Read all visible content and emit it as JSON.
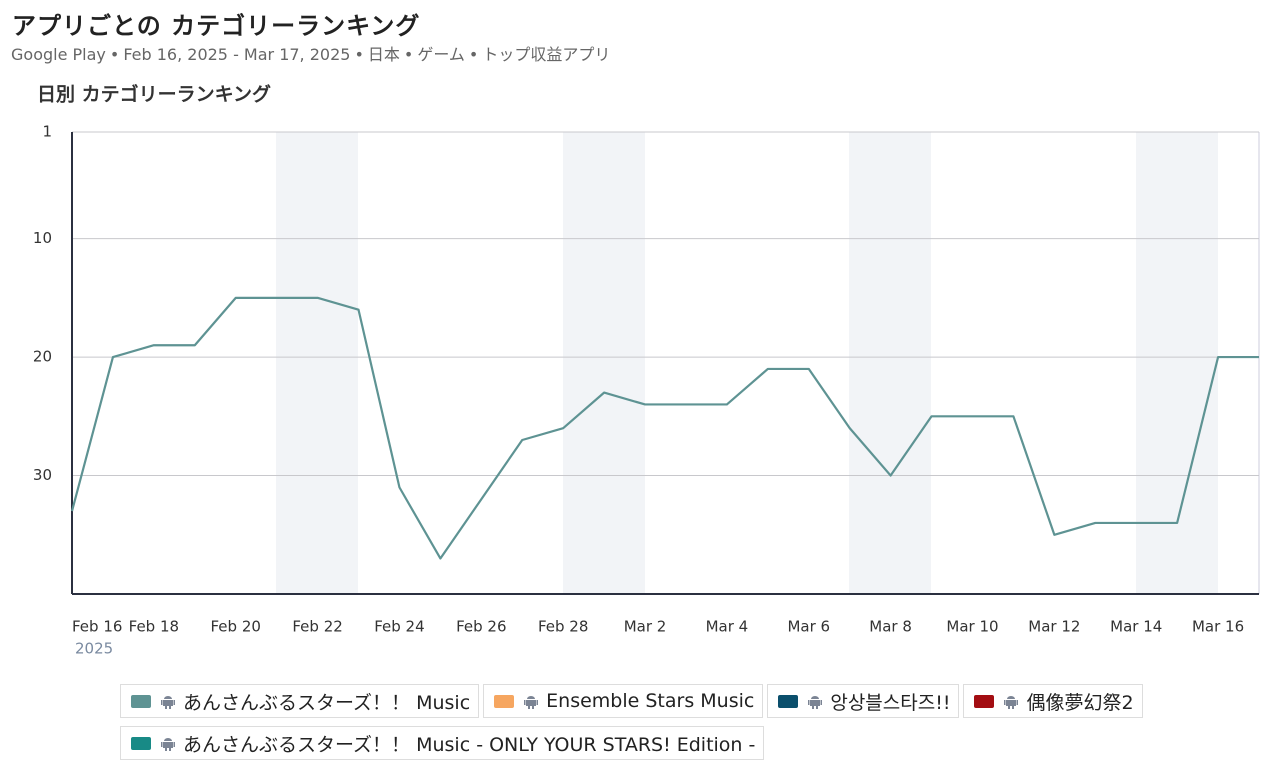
{
  "header": {
    "title": "アプリごとの カテゴリーランキング",
    "subtitle": [
      "Google Play",
      "Feb 16, 2025 - Mar 17, 2025",
      "日本",
      "ゲーム",
      "トップ収益アプリ"
    ]
  },
  "chart_data": {
    "type": "line",
    "title": "日別 カテゴリーランキング",
    "categories": [
      "Feb 16",
      null,
      "Feb 18",
      null,
      "Feb 20",
      null,
      "Feb 22",
      null,
      "Feb 24",
      null,
      "Feb 26",
      null,
      "Feb 28",
      null,
      "Mar 2",
      null,
      "Mar 4",
      null,
      "Mar 6",
      null,
      "Mar 8",
      null,
      "Mar 10",
      null,
      "Mar 12",
      null,
      "Mar 14",
      null,
      "Mar 16",
      null
    ],
    "x_year_label": "2025",
    "ylim": [
      1,
      40
    ],
    "y_inverted": true,
    "yticks": [
      1,
      10,
      20,
      30
    ],
    "grid": true,
    "series": [
      {
        "name": "あんさんぶるスターズ！！ Music",
        "color": "#5e9393",
        "values": [
          33,
          20,
          19,
          19,
          15,
          15,
          15,
          16,
          31,
          37,
          32,
          27,
          26,
          23,
          24,
          24,
          24,
          21,
          21,
          26,
          30,
          25,
          25,
          25,
          35,
          34,
          34,
          34,
          20,
          20
        ]
      },
      {
        "name": "Ensemble Stars Music",
        "color": "#f6a660",
        "values": [
          null,
          null,
          null,
          null,
          null,
          null,
          null,
          null,
          null,
          null,
          null,
          null,
          null,
          null,
          null,
          null,
          null,
          null,
          null,
          null,
          null,
          null,
          null,
          null,
          null,
          null,
          null,
          null,
          null,
          null
        ]
      },
      {
        "name": "앙상블스타즈!!",
        "color": "#0b4f6c",
        "values": [
          null,
          null,
          null,
          null,
          null,
          null,
          null,
          null,
          null,
          null,
          null,
          null,
          null,
          null,
          null,
          null,
          null,
          null,
          null,
          null,
          null,
          null,
          null,
          null,
          null,
          null,
          null,
          null,
          null,
          null
        ]
      },
      {
        "name": "偶像夢幻祭2",
        "color": "#a30d12",
        "values": [
          null,
          null,
          null,
          null,
          null,
          null,
          null,
          null,
          null,
          null,
          null,
          null,
          null,
          null,
          null,
          null,
          null,
          null,
          null,
          null,
          null,
          null,
          null,
          null,
          null,
          null,
          null,
          null,
          null,
          null
        ]
      },
      {
        "name": "あんさんぶるスターズ！！ Music - ONLY YOUR STARS! Edition -",
        "color": "#188a86",
        "values": [
          null,
          null,
          null,
          null,
          null,
          null,
          null,
          null,
          null,
          null,
          null,
          null,
          null,
          null,
          null,
          null,
          null,
          null,
          null,
          null,
          null,
          null,
          null,
          null,
          null,
          null,
          null,
          null,
          null,
          null
        ]
      }
    ]
  }
}
